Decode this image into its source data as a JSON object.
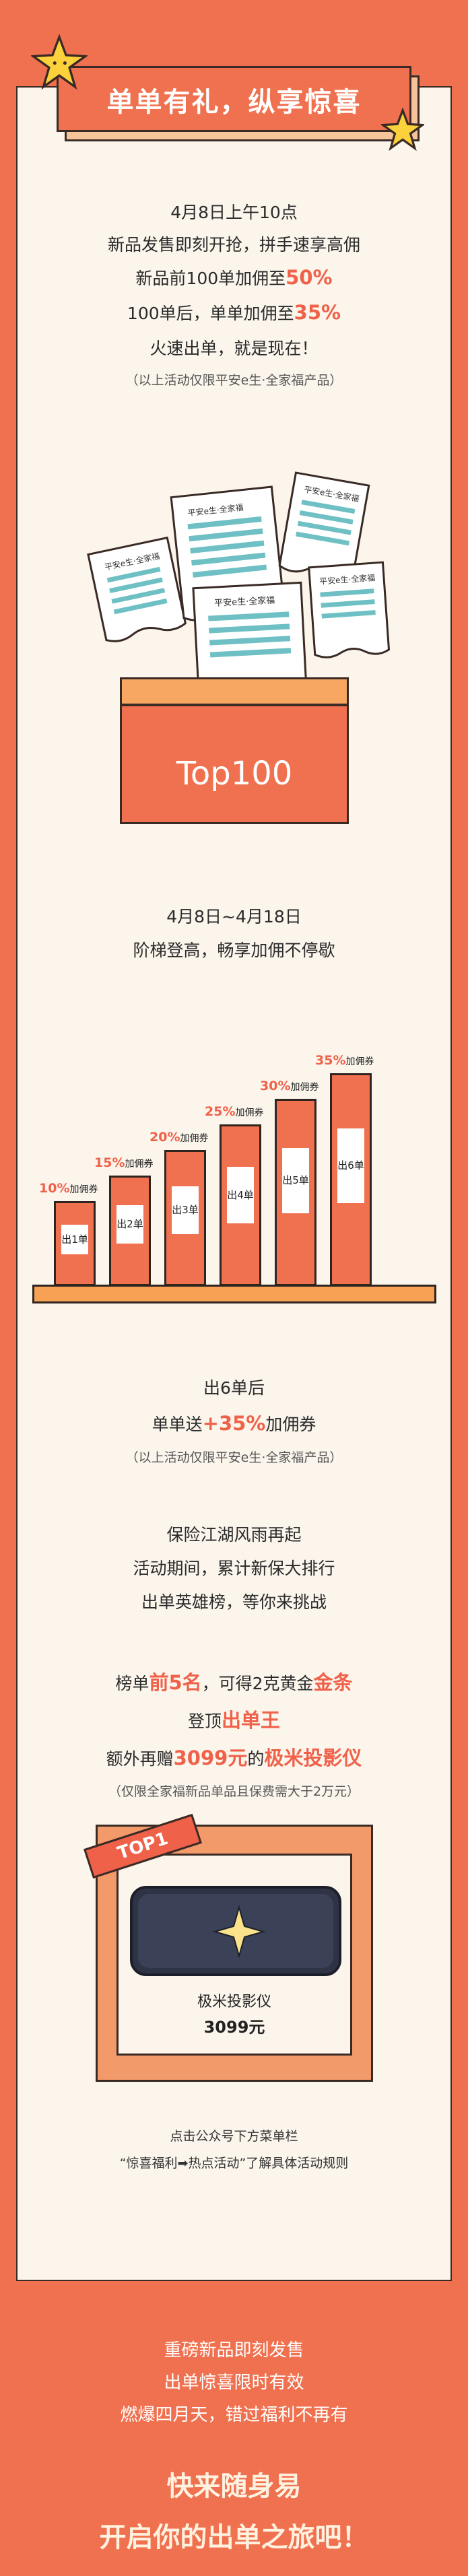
{
  "header": {
    "title": "单单有礼，纵享惊喜"
  },
  "section1": {
    "line1": "4月8日上午10点",
    "line2": "新品发售即刻开抢，拼手速享高佣",
    "line3_pre": "新品前100单加佣至",
    "line3_val": "50%",
    "line4_pre": "100单后，单单加佣至",
    "line4_val": "35%",
    "line5": "火速出单，就是现在！",
    "note": "（以上活动仅限平安e生·全家福产品）"
  },
  "illustration": {
    "paper_labels": [
      "平安e生·全家福",
      "平安e生·全家福",
      "平安e生·全家福",
      "平安e生·全家福",
      "平安e生·全家福"
    ],
    "box_label": "Top100"
  },
  "section2": {
    "line1": "4月8日~4月18日",
    "line2": "阶梯登高，畅享加佣不停歇"
  },
  "chart_data": {
    "type": "bar",
    "categories": [
      "出1单",
      "出2单",
      "出3单",
      "出4单",
      "出5单",
      "出6单"
    ],
    "values": [
      10,
      15,
      20,
      25,
      30,
      35
    ],
    "value_labels": [
      "10%",
      "15%",
      "20%",
      "25%",
      "30%",
      "35%"
    ],
    "unit_label": "加佣券"
  },
  "section3": {
    "line1": "出6单后",
    "line2_pre": "单单送",
    "line2_val": "+35%",
    "line2_post": "加佣券",
    "note": "（以上活动仅限平安e生·全家福产品）"
  },
  "section4": {
    "line1": "保险江湖风雨再起",
    "line2": "活动期间，累计新保大排行",
    "line3": "出单英雄榜，等你来挑战"
  },
  "section5": {
    "l1_a": "榜单",
    "l1_b": "前5名",
    "l1_c": "，可得2克黄金",
    "l1_d": "金条",
    "l2_a": "登顶",
    "l2_b": "出单王",
    "l3_a": "额外再赠",
    "l3_b": "3099元",
    "l3_c": "的",
    "l3_d": "极米投影仪",
    "note": "（仅限全家福新品单品且保费需大于2万元）"
  },
  "prize": {
    "ribbon": "TOP1",
    "name": "极米投影仪",
    "price": "3099元"
  },
  "section6": {
    "line1": "点击公众号下方菜单栏",
    "line2": "“惊喜福利➡热点活动”了解具体活动规则"
  },
  "footer": {
    "line1": "重磅新品即刻发售",
    "line2": "出单惊喜限时有效",
    "line3": "燃爆四月天，错过福利不再有",
    "cta1": "快来随身易",
    "cta2": "开启你的出单之旅吧！"
  }
}
